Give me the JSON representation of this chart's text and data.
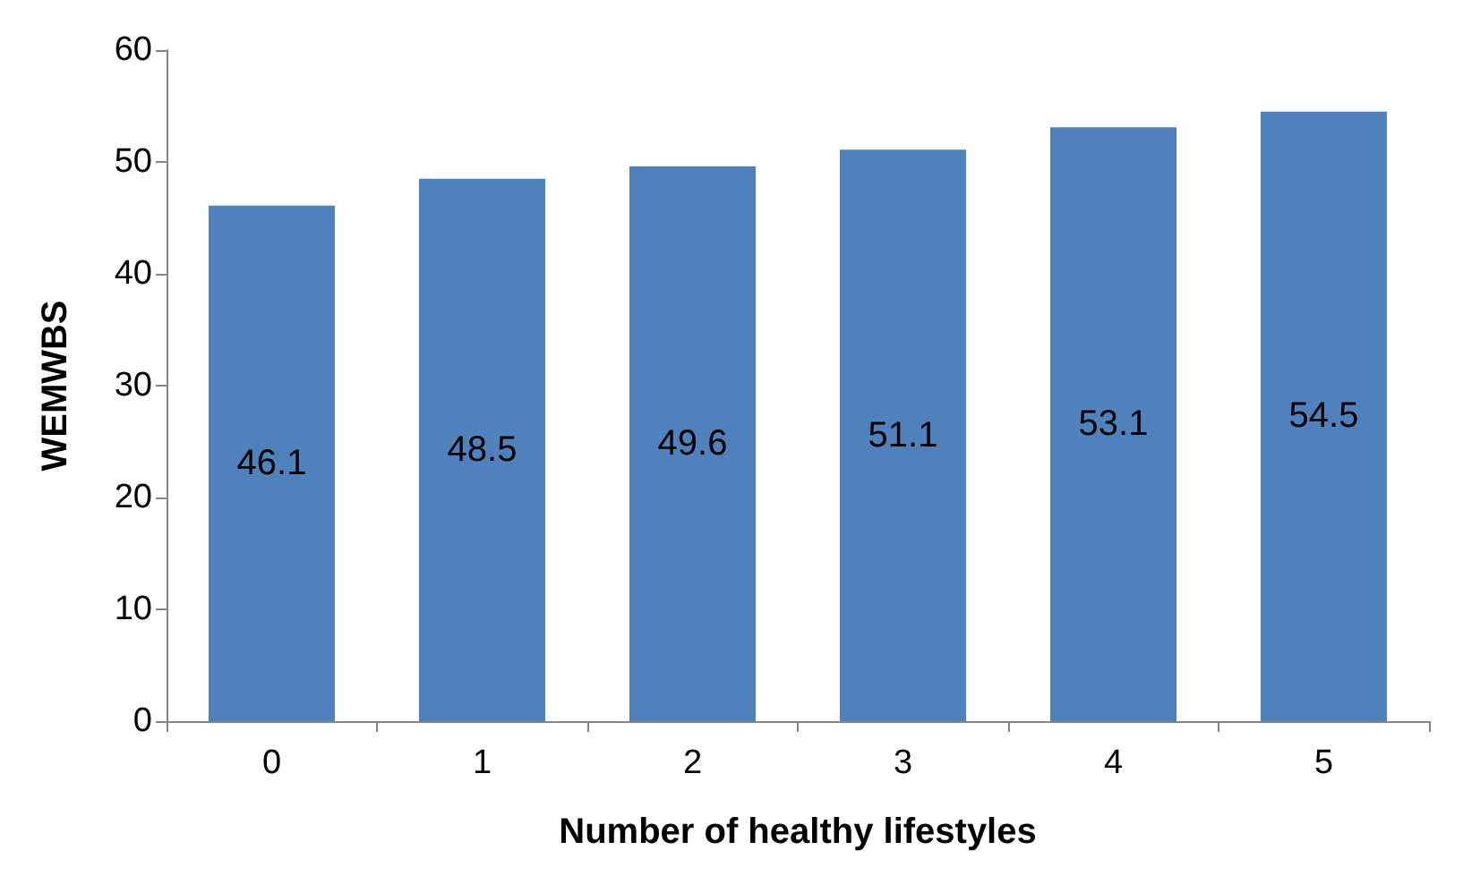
{
  "chart_data": {
    "type": "bar",
    "xlabel": "Number of healthy lifestyles",
    "ylabel": "WEMWBS",
    "categories": [
      "0",
      "1",
      "2",
      "3",
      "4",
      "5"
    ],
    "values": [
      46.1,
      48.5,
      49.6,
      51.1,
      53.1,
      54.5
    ],
    "color": "#4f81bd",
    "ylim": [
      0,
      60
    ],
    "yticks": [
      0,
      10,
      20,
      30,
      40,
      50,
      60
    ],
    "grid": false,
    "data_labels": true
  }
}
